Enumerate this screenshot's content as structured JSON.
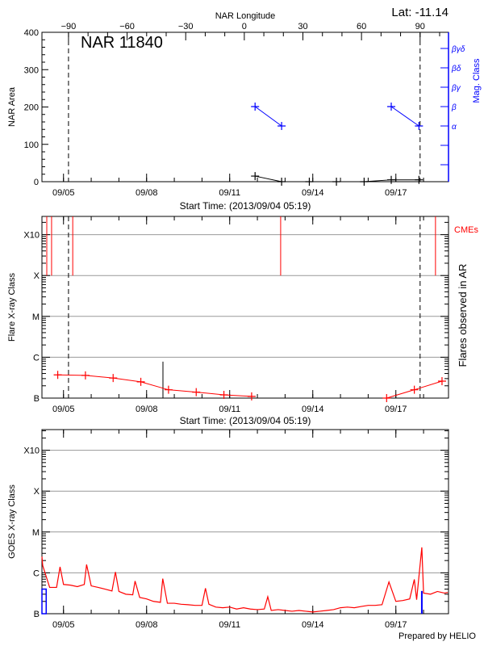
{
  "chart_data": [
    {
      "type": "line",
      "title": "NAR 11840",
      "lat_label": "Lat: -11.14",
      "top_axis_label": "NAR Longitude",
      "longitude_ticks": [
        "-90",
        "-60",
        "-30",
        "0",
        "30",
        "60",
        "90"
      ],
      "xlabel": "Start Time: (2013/09/04 05:19)",
      "ylabel": "NAR Area",
      "y2label": "Mag. Class",
      "ylim": [
        0,
        400
      ],
      "yticks": [
        "0",
        "100",
        "200",
        "300",
        "400"
      ],
      "mag_levels": [
        "α",
        "β",
        "βγ",
        "βδ",
        "βγδ"
      ],
      "area_series": [
        [
          "2013-09-11T22:00",
          15
        ],
        [
          "2013-09-12T21:00",
          0
        ],
        [
          "2013-09-13T21:00",
          0
        ],
        [
          "2013-09-14T20:30",
          0
        ],
        [
          "2013-09-15T20:30",
          0
        ],
        [
          "2013-09-16T20:00",
          5
        ],
        [
          "2013-09-17T20:00",
          5
        ]
      ],
      "mag_series": [
        [
          [
            "2013-09-11T22:00",
            "β"
          ],
          [
            "2013-09-12T21:00",
            "α"
          ]
        ],
        [
          [
            "2013-09-16T20:00",
            "β"
          ],
          [
            "2013-09-17T20:00",
            "α"
          ]
        ]
      ],
      "colors": {
        "area": "#000000",
        "mag": "#0000ff"
      }
    },
    {
      "type": "line",
      "xlabel": "Start Time: (2013/09/04 05:19)",
      "ylabel": "Flare X-ray Class",
      "y2label": "Flares observed in AR",
      "cme_label": "CMEs",
      "y_scale": "log",
      "class_ticks": [
        "B",
        "C",
        "M",
        "X",
        "X10"
      ],
      "grid": true,
      "cme_times": [
        "2013-09-04T09:30",
        "2013-09-04T13:40",
        "2013-09-05T08:00",
        "2013-09-12T20:10",
        "2013-09-18T10:20"
      ],
      "ar_flares": [
        [
          "2013-09-08T14:10",
          7.8e-07
        ]
      ],
      "flux_series": [
        [
          [
            "2013-09-04T19:00",
            3.7e-07
          ],
          [
            "2013-09-05T19:00",
            3.6e-07
          ],
          [
            "2013-09-06T19:00",
            3.1e-07
          ],
          [
            "2013-09-07T19:00",
            2.5e-07
          ],
          [
            "2013-09-08T19:00",
            1.6e-07
          ],
          [
            "2013-09-09T19:00",
            1.4e-07
          ],
          [
            "2013-09-10T19:00",
            1.2e-07
          ],
          [
            "2013-09-11T19:00",
            1.1e-07
          ]
        ],
        [
          [
            "2013-09-16T16:00",
            1e-07
          ],
          [
            "2013-09-17T16:00",
            1.6e-07
          ],
          [
            "2013-09-18T16:00",
            2.6e-07
          ]
        ]
      ],
      "colors": {
        "series": "#ff0000",
        "cme": "#ff0000",
        "flare": "#000000",
        "grid": "#999999"
      }
    },
    {
      "type": "line",
      "ylabel": "GOES X-ray Class",
      "y_scale": "log",
      "class_ticks": [
        "B",
        "C",
        "M",
        "X",
        "X10"
      ],
      "grid": true,
      "goes_series": [
        [
          "2013-09-04T05:19",
          2.5e-06
        ],
        [
          "2013-09-04T06:00",
          1.5e-06
        ],
        [
          "2013-09-04T12:00",
          4.4e-07
        ],
        [
          "2013-09-04T18:00",
          4.4e-07
        ],
        [
          "2013-09-04T21:00",
          1.4e-06
        ],
        [
          "2013-09-05T00:00",
          5.2e-07
        ],
        [
          "2013-09-05T06:00",
          5e-07
        ],
        [
          "2013-09-05T12:00",
          4.6e-07
        ],
        [
          "2013-09-05T18:00",
          5.2e-07
        ],
        [
          "2013-09-05T20:00",
          1.6e-06
        ],
        [
          "2013-09-06T00:00",
          4.8e-07
        ],
        [
          "2013-09-06T06:00",
          4.4e-07
        ],
        [
          "2013-09-06T12:00",
          4e-07
        ],
        [
          "2013-09-06T18:00",
          3.6e-07
        ],
        [
          "2013-09-06T21:00",
          1.05e-06
        ],
        [
          "2013-09-07T00:00",
          3.5e-07
        ],
        [
          "2013-09-07T06:00",
          3e-07
        ],
        [
          "2013-09-07T12:00",
          2.9e-07
        ],
        [
          "2013-09-07T14:00",
          6.3e-07
        ],
        [
          "2013-09-07T18:00",
          2.5e-07
        ],
        [
          "2013-09-08T00:00",
          2.3e-07
        ],
        [
          "2013-09-08T06:00",
          2e-07
        ],
        [
          "2013-09-08T12:00",
          1.9e-07
        ],
        [
          "2013-09-08T14:00",
          7.2e-07
        ],
        [
          "2013-09-08T18:00",
          1.8e-07
        ],
        [
          "2013-09-09T00:00",
          1.8e-07
        ],
        [
          "2013-09-09T06:00",
          1.7e-07
        ],
        [
          "2013-09-09T12:00",
          1.66e-07
        ],
        [
          "2013-09-09T18:00",
          1.6e-07
        ],
        [
          "2013-09-10T00:00",
          1.6e-07
        ],
        [
          "2013-09-10T03:00",
          4.2e-07
        ],
        [
          "2013-09-10T06:00",
          1.7e-07
        ],
        [
          "2013-09-10T12:00",
          1.45e-07
        ],
        [
          "2013-09-10T18:00",
          1.4e-07
        ],
        [
          "2013-09-11T00:00",
          1.45e-07
        ],
        [
          "2013-09-11T06:00",
          1.3e-07
        ],
        [
          "2013-09-11T12:00",
          1.4e-07
        ],
        [
          "2013-09-11T18:00",
          1.3e-07
        ],
        [
          "2013-09-12T00:00",
          1.26e-07
        ],
        [
          "2013-09-12T06:00",
          1.3e-07
        ],
        [
          "2013-09-12T09:00",
          2.6e-07
        ],
        [
          "2013-09-12T12:00",
          1.2e-07
        ],
        [
          "2013-09-12T18:00",
          1.26e-07
        ],
        [
          "2013-09-13T00:00",
          1.2e-07
        ],
        [
          "2013-09-13T06:00",
          1.15e-07
        ],
        [
          "2013-09-13T12:00",
          1.2e-07
        ],
        [
          "2013-09-13T18:00",
          1.15e-07
        ],
        [
          "2013-09-14T00:00",
          1.1e-07
        ],
        [
          "2013-09-14T06:00",
          1.15e-07
        ],
        [
          "2013-09-14T12:00",
          1.2e-07
        ],
        [
          "2013-09-14T18:00",
          1.26e-07
        ],
        [
          "2013-09-15T00:00",
          1.4e-07
        ],
        [
          "2013-09-15T06:00",
          1.45e-07
        ],
        [
          "2013-09-15T12:00",
          1.4e-07
        ],
        [
          "2013-09-15T18:00",
          1.5e-07
        ],
        [
          "2013-09-16T00:00",
          1.6e-07
        ],
        [
          "2013-09-16T06:00",
          1.6e-07
        ],
        [
          "2013-09-16T12:00",
          1.66e-07
        ],
        [
          "2013-09-16T18:00",
          6e-07
        ],
        [
          "2013-09-17T00:00",
          2e-07
        ],
        [
          "2013-09-17T06:00",
          2.1e-07
        ],
        [
          "2013-09-17T12:00",
          2.3e-07
        ],
        [
          "2013-09-17T16:00",
          6.9e-07
        ],
        [
          "2013-09-17T18:00",
          2.2e-07
        ],
        [
          "2013-09-17T22:30",
          4.2e-06
        ],
        [
          "2013-09-18T00:00",
          3.2e-07
        ],
        [
          "2013-09-18T06:00",
          3e-07
        ],
        [
          "2013-09-18T12:00",
          3.5e-07
        ],
        [
          "2013-09-18T18:00",
          3.2e-07
        ],
        [
          "2013-09-18T21:00",
          3.3e-07
        ]
      ],
      "goes_events": [
        {
          "start": "2013-09-04T05:19",
          "end": "2013-09-04T09:00",
          "flux": 4e-07
        },
        {
          "start": "2013-09-17T22:30",
          "end": "2013-09-17T22:30",
          "flux": 3.6e-07
        }
      ],
      "colors": {
        "series": "#ff0000",
        "events": "#0000ff",
        "grid": "#999999"
      }
    }
  ],
  "time_axis": {
    "xlim": [
      "2013-09-04T05:19",
      "2013-09-18T21:37"
    ],
    "tick_labels": [
      "09/05",
      "09/08",
      "09/11",
      "09/14",
      "09/17"
    ],
    "tick_dates": [
      "2013-09-05T00:00",
      "2013-09-08T00:00",
      "2013-09-11T00:00",
      "2013-09-14T00:00",
      "2013-09-17T00:00"
    ],
    "limb_times": [
      "2013-09-05T04:20",
      "2013-09-17T21:00"
    ]
  },
  "footer": "Prepared by HELIO"
}
